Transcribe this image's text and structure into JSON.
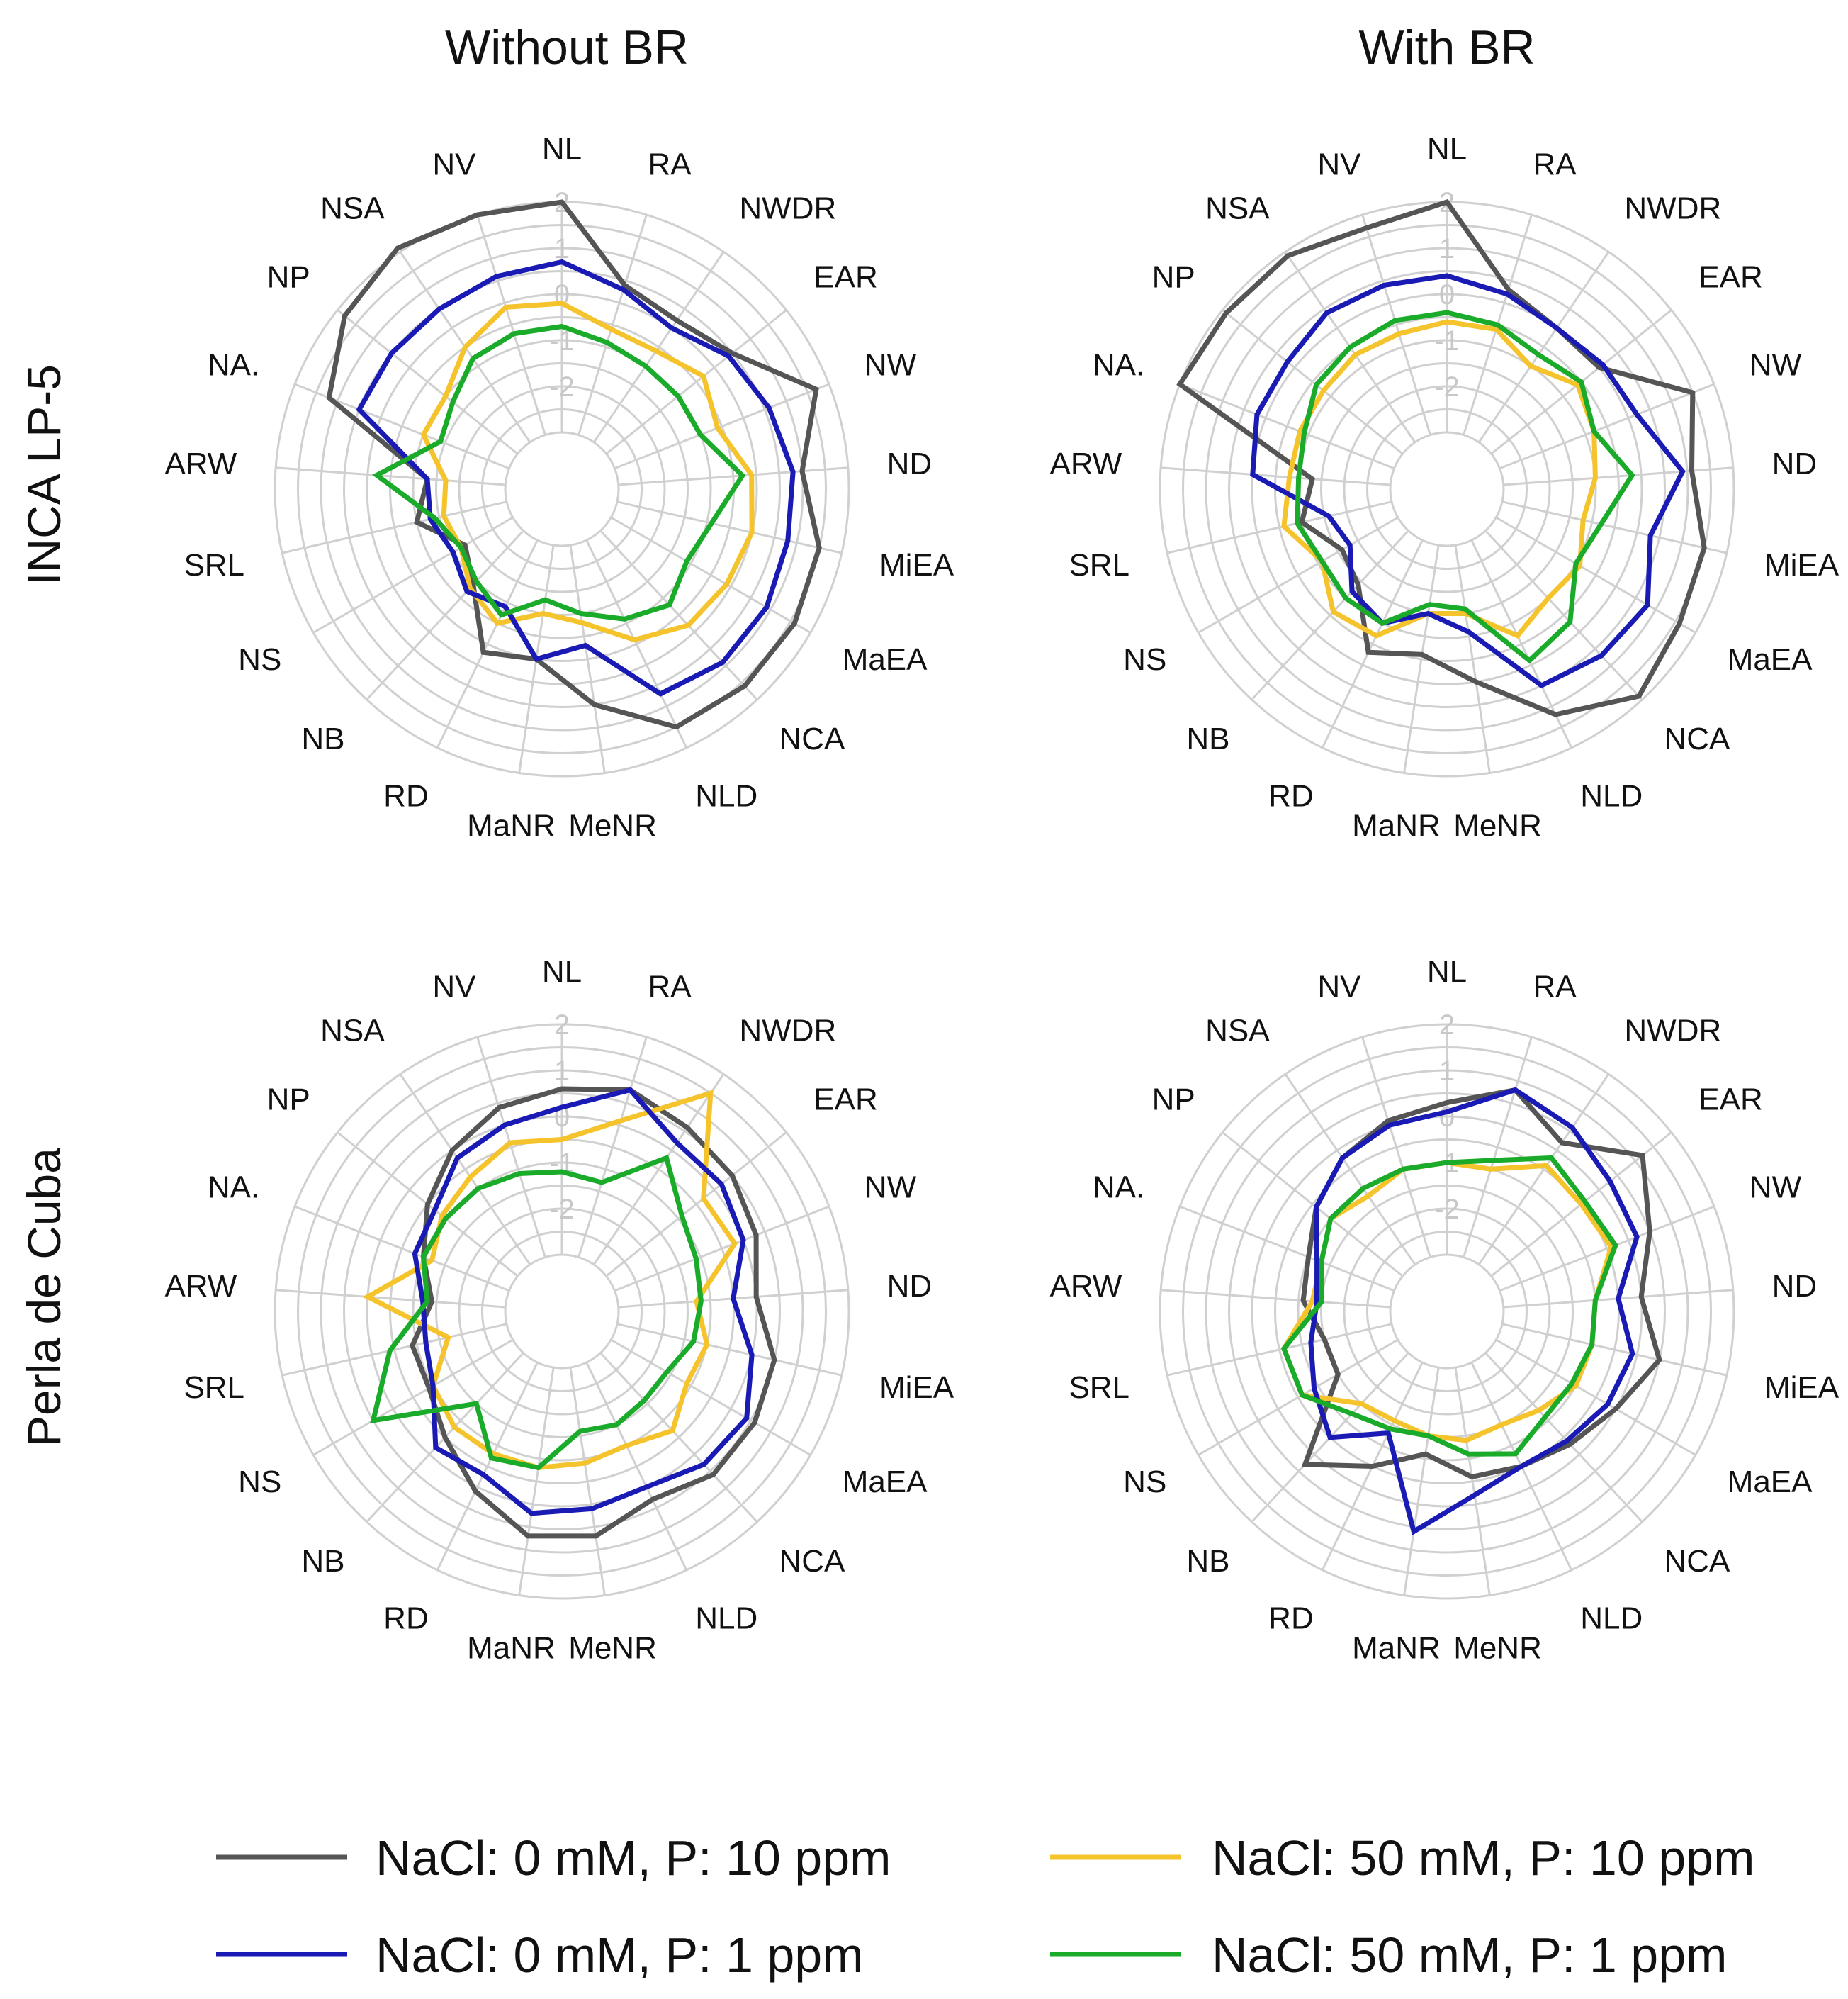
{
  "chart_data": {
    "type": "radar",
    "column_titles": [
      "Without BR",
      "With BR"
    ],
    "row_titles": [
      "INCA LP-5",
      "Perla de Cuba"
    ],
    "axes": [
      "NL",
      "RA",
      "NWDR",
      "EAR",
      "NW",
      "ND",
      "MiEA",
      "MaEA",
      "NCA",
      "NLD",
      "MeNR",
      "MaNR",
      "RD",
      "NB",
      "NS",
      "SRL",
      "ARW",
      "NA.",
      "NP",
      "NSA",
      "NV"
    ],
    "radial_ticks": [
      "2",
      "1",
      "0",
      "-1",
      "-2"
    ],
    "rlim": [
      -3,
      2
    ],
    "legend": [
      {
        "name": "NaCl: 0 mM, P: 10 ppm",
        "color": "#555555"
      },
      {
        "name": "NaCl: 50 mM, P: 10 ppm",
        "color": "#f5c32c"
      },
      {
        "name": "NaCl: 0 mM, P: 1 ppm",
        "color": "#1a1ab4"
      },
      {
        "name": "NaCl: 50 mM, P: 1 ppm",
        "color": "#1aab2a"
      }
    ],
    "panels": [
      {
        "row": "INCA LP-5",
        "column": "Without BR",
        "series": [
          {
            "name": "NaCl: 0 mM, P: 10 ppm",
            "values": [
              2.0,
              0.4,
              0.2,
              0.5,
              1.7,
              1.0,
              1.5,
              1.6,
              1.6,
              1.5,
              0.5,
              -0.5,
              -0.3,
              -1.4,
              -1.8,
              -1.0,
              -1.3,
              1.2,
              1.8,
              2.1,
              2.0
            ]
          },
          {
            "name": "NaCl: 50 mM, P: 10 ppm",
            "values": [
              -0.2,
              -0.6,
              -0.6,
              -0.3,
              -0.6,
              -0.1,
              0.0,
              -0.1,
              -0.2,
              -0.6,
              -1.3,
              -1.5,
              -1.0,
              -1.3,
              -1.7,
              -1.6,
              -1.7,
              -1.0,
              -1.0,
              -0.5,
              -0.1
            ]
          },
          {
            "name": "NaCl: 0 mM, P: 1 ppm",
            "values": [
              0.7,
              0.3,
              0.0,
              0.4,
              0.6,
              0.8,
              0.8,
              0.9,
              0.9,
              0.7,
              -0.8,
              -0.5,
              -1.4,
              -1.2,
              -1.5,
              -1.3,
              -1.3,
              0.5,
              0.5,
              0.5,
              0.6
            ]
          },
          {
            "name": "NaCl: 50 mM, P: 1 ppm",
            "values": [
              -0.7,
              -0.9,
              -1.0,
              -1.0,
              -1.0,
              -0.3,
              -0.9,
              -1.1,
              -0.8,
              -1.1,
              -1.5,
              -1.8,
              -1.2,
              -1.5,
              -1.7,
              -1.4,
              -0.2,
              -1.4,
              -1.2,
              -0.8,
              -0.7
            ]
          }
        ]
      },
      {
        "row": "INCA LP-5",
        "column": "With BR",
        "series": [
          {
            "name": "NaCl: 0 mM, P: 10 ppm",
            "values": [
              2.0,
              0.3,
              0.0,
              0.0,
              1.5,
              1.1,
              1.5,
              1.6,
              1.9,
              1.2,
              0.0,
              -0.6,
              -0.3,
              -1.4,
              -1.6,
              -1.0,
              -1.3,
              2.0,
              1.9,
              1.9,
              1.7
            ]
          },
          {
            "name": "NaCl: 50 mM, P: 10 ppm",
            "values": [
              -0.6,
              -0.6,
              -1.0,
              -0.6,
              -0.8,
              -1.0,
              -1.2,
              -0.9,
              -1.0,
              -0.7,
              -1.5,
              -1.5,
              -0.7,
              -0.6,
              -1.1,
              -0.6,
              -0.8,
              -0.8,
              -0.8,
              -0.7,
              -0.7
            ]
          },
          {
            "name": "NaCl: 0 mM, P: 1 ppm",
            "values": [
              0.4,
              0.2,
              0.0,
              0.1,
              0.2,
              0.9,
              0.3,
              0.8,
              0.7,
              0.5,
              -1.1,
              -1.5,
              -1.0,
              -1.2,
              -1.8,
              -1.6,
              0.0,
              0.2,
              0.2,
              0.4,
              0.4
            ]
          },
          {
            "name": "NaCl: 50 mM, P: 1 ppm",
            "values": [
              -0.4,
              -0.5,
              -0.7,
              -0.5,
              -0.8,
              -0.2,
              -0.8,
              -1.0,
              -0.3,
              -0.1,
              -1.6,
              -1.7,
              -1.0,
              -1.0,
              -1.1,
              -0.9,
              -1.0,
              -0.9,
              -0.6,
              -0.5,
              -0.4
            ]
          }
        ]
      },
      {
        "row": "Perla de Cuba",
        "column": "Without BR",
        "series": [
          {
            "name": "NaCl: 0 mM, P: 10 ppm",
            "values": [
              0.6,
              0.8,
              0.6,
              0.5,
              0.3,
              0.0,
              0.5,
              0.6,
              0.6,
              0.3,
              0.7,
              0.7,
              0.1,
              -0.5,
              -0.9,
              -0.9,
              -1.4,
              -1.0,
              -0.5,
              0.0,
              0.4
            ]
          },
          {
            "name": "NaCl: 50 mM, P: 10 ppm",
            "values": [
              -0.5,
              0.1,
              1.5,
              -0.3,
              -0.2,
              -1.3,
              -1.0,
              -1.1,
              -0.7,
              -1.0,
              -0.9,
              -0.8,
              -0.8,
              -0.8,
              -1.0,
              -1.7,
              0.0,
              -1.2,
              -0.9,
              -0.7,
              -0.4
            ]
          },
          {
            "name": "NaCl: 0 mM, P: 1 ppm",
            "values": [
              0.2,
              0.8,
              0.2,
              0.2,
              0.0,
              -0.5,
              0.0,
              0.4,
              0.3,
              0.0,
              0.1,
              0.2,
              -0.3,
              -0.2,
              -1.0,
              -1.2,
              -1.2,
              -0.8,
              -0.7,
              -0.2,
              0.0
            ]
          },
          {
            "name": "NaCl: 50 mM, P: 1 ppm",
            "values": [
              -1.2,
              -1.3,
              -0.2,
              -0.9,
              -1.1,
              -1.2,
              -1.3,
              -1.6,
              -1.6,
              -1.5,
              -1.6,
              -0.8,
              -0.7,
              -1.5,
              0.5,
              -0.4,
              -1.3,
              -1.0,
              -1.0,
              -1.0,
              -1.1
            ]
          }
        ]
      },
      {
        "row": "Perla de Cuba",
        "column": "With BR",
        "series": [
          {
            "name": "NaCl: 0 mM, P: 10 ppm",
            "values": [
              0.3,
              0.8,
              0.2,
              1.2,
              0.5,
              0.0,
              0.5,
              0.0,
              -0.3,
              -0.5,
              -0.6,
              -1.1,
              -0.5,
              0.3,
              -1.5,
              -1.5,
              -1.1,
              -1.0,
              -0.6,
              -0.2,
              0.1
            ]
          },
          {
            "name": "NaCl: 50 mM, P: 10 ppm",
            "values": [
              -1.0,
              -1.0,
              -0.4,
              -0.5,
              -0.4,
              -1.0,
              -1.0,
              -1.0,
              -1.3,
              -1.5,
              -1.4,
              -1.5,
              -1.6,
              -1.5,
              -0.6,
              -0.6,
              -1.3,
              -1.3,
              -1.0,
              -1.2,
              -1.0
            ]
          },
          {
            "name": "NaCl: 0 mM, P: 1 ppm",
            "values": [
              0.1,
              0.8,
              0.6,
              0.3,
              0.2,
              -0.5,
              -0.1,
              -0.2,
              -0.4,
              -0.5,
              -0.2,
              0.6,
              -1.3,
              -0.5,
              -0.9,
              -1.2,
              -1.4,
              -1.2,
              -0.6,
              -0.2,
              0.0
            ]
          },
          {
            "name": "NaCl: 50 mM, P: 1 ppm",
            "values": [
              -1.0,
              -0.8,
              -0.2,
              -0.4,
              -0.3,
              -1.0,
              -1.0,
              -1.1,
              -1.1,
              -0.8,
              -1.1,
              -1.5,
              -1.4,
              -1.2,
              -0.6,
              -0.6,
              -1.5,
              -1.3,
              -1.0,
              -1.0,
              -1.0
            ]
          }
        ]
      }
    ]
  }
}
